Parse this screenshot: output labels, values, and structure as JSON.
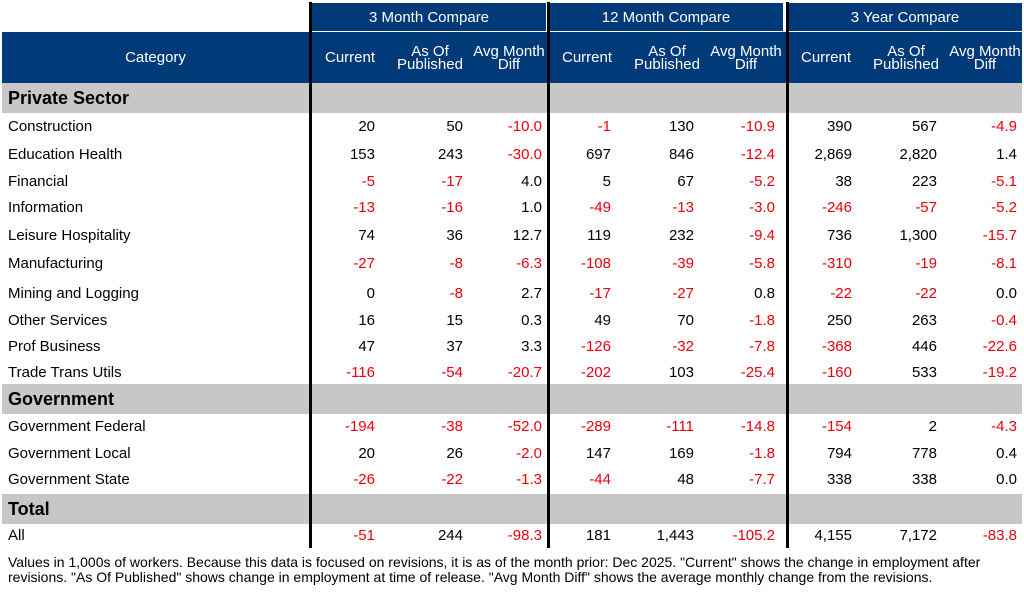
{
  "chart_data": {
    "type": "table",
    "group_headers": [
      "3 Month Compare",
      "12 Month Compare",
      "3 Year Compare"
    ],
    "column_headers": [
      "Category",
      "Current",
      "As Of Published",
      "Avg Month Diff",
      "Current",
      "As Of Published",
      "Avg Month Diff",
      "Current",
      "As Of Published",
      "Avg Month Diff"
    ],
    "sections": [
      {
        "name": "Private Sector",
        "rows": [
          {
            "category": "Construction",
            "values": [
              "20",
              "50",
              "-10.0",
              "-1",
              "130",
              "-10.9",
              "390",
              "567",
              "-4.9"
            ]
          },
          {
            "category": "Education Health",
            "values": [
              "153",
              "243",
              "-30.0",
              "697",
              "846",
              "-12.4",
              "2,869",
              "2,820",
              "1.4"
            ]
          },
          {
            "category": "Financial",
            "values": [
              "-5",
              "-17",
              "4.0",
              "5",
              "67",
              "-5.2",
              "38",
              "223",
              "-5.1"
            ]
          },
          {
            "category": "Information",
            "values": [
              "-13",
              "-16",
              "1.0",
              "-49",
              "-13",
              "-3.0",
              "-246",
              "-57",
              "-5.2"
            ]
          },
          {
            "category": "Leisure Hospitality",
            "values": [
              "74",
              "36",
              "12.7",
              "119",
              "232",
              "-9.4",
              "736",
              "1,300",
              "-15.7"
            ]
          },
          {
            "category": "Manufacturing",
            "values": [
              "-27",
              "-8",
              "-6.3",
              "-108",
              "-39",
              "-5.8",
              "-310",
              "-19",
              "-8.1"
            ]
          },
          {
            "category": "Mining and Logging",
            "values": [
              "0",
              "-8",
              "2.7",
              "-17",
              "-27",
              "0.8",
              "-22",
              "-22",
              "0.0"
            ]
          },
          {
            "category": "Other Services",
            "values": [
              "16",
              "15",
              "0.3",
              "49",
              "70",
              "-1.8",
              "250",
              "263",
              "-0.4"
            ]
          },
          {
            "category": "Prof Business",
            "values": [
              "47",
              "37",
              "3.3",
              "-126",
              "-32",
              "-7.8",
              "-368",
              "446",
              "-22.6"
            ]
          },
          {
            "category": "Trade Trans Utils",
            "values": [
              "-116",
              "-54",
              "-20.7",
              "-202",
              "103",
              "-25.4",
              "-160",
              "533",
              "-19.2"
            ]
          }
        ]
      },
      {
        "name": "Government",
        "rows": [
          {
            "category": "Government Federal",
            "values": [
              "-194",
              "-38",
              "-52.0",
              "-289",
              "-111",
              "-14.8",
              "-154",
              "2",
              "-4.3"
            ]
          },
          {
            "category": "Government Local",
            "values": [
              "20",
              "26",
              "-2.0",
              "147",
              "169",
              "-1.8",
              "794",
              "778",
              "0.4"
            ]
          },
          {
            "category": "Government State",
            "values": [
              "-26",
              "-22",
              "-1.3",
              "-44",
              "48",
              "-7.7",
              "338",
              "338",
              "0.0"
            ]
          }
        ]
      },
      {
        "name": "Total",
        "rows": [
          {
            "category": "All",
            "values": [
              "-51",
              "244",
              "-98.3",
              "181",
              "1,443",
              "-105.2",
              "4,155",
              "7,172",
              "-83.8"
            ]
          }
        ]
      }
    ],
    "footnote": "Values in 1,000s of workers. Because this data is focused on revisions, it is as of the month prior: Dec 2025. \"Current\" shows the change in employment after revisions. \"As Of Published\" shows change in employment at time of release. \"Avg Month Diff\" shows the average monthly change from the revisions.",
    "colors": {
      "header_bg": "#003a79",
      "header_text": "#ffffff",
      "section_bg": "#c7c7c7",
      "negative": "#e8000b",
      "positive": "#000000"
    }
  }
}
